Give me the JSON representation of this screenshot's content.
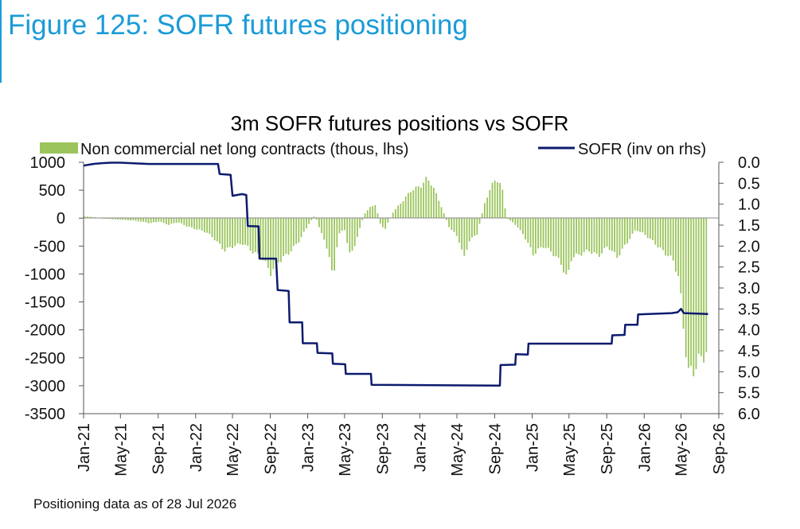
{
  "figure_title": "Figure 125: SOFR futures positioning",
  "footnote": "Positioning data as of 28 Jul 2026",
  "colors": {
    "accent": "#1a9bd7",
    "bars": "#9bc55c",
    "line": "#0c1b6e"
  },
  "chart_data": {
    "type": "bar",
    "title": "3m SOFR futures positions vs SOFR",
    "xlabel": "",
    "ylabel": "",
    "legend_placement": "top",
    "grid": false,
    "x_ticks": [
      "Jan-21",
      "May-21",
      "Sep-21",
      "Jan-22",
      "May-22",
      "Sep-22",
      "Jan-23",
      "May-23",
      "Sep-23",
      "Jan-24",
      "May-24",
      "Sep-24",
      "Jan-25",
      "May-25",
      "Sep-25",
      "Jan-26",
      "May-26",
      "Sep-26"
    ],
    "y_left": {
      "ticks": [
        "1000",
        "500",
        "0",
        "-500",
        "-1000",
        "-1500",
        "-2000",
        "-2500",
        "-3000",
        "-3500"
      ],
      "ylim": [
        -3500,
        1000
      ]
    },
    "y_right": {
      "ticks": [
        "0.0",
        "0.5",
        "1.0",
        "1.5",
        "2.0",
        "2.5",
        "3.0",
        "3.5",
        "4.0",
        "4.5",
        "5.0",
        "5.5",
        "6.0"
      ],
      "ylim": [
        0,
        6
      ],
      "inverted": true
    },
    "series": [
      {
        "name": "Non commercial net long contracts (thous, lhs)",
        "kind": "bar",
        "axis": "left",
        "points": [
          [
            "2021-01-05",
            30
          ],
          [
            "2021-02-05",
            20
          ],
          [
            "2021-03-05",
            -10
          ],
          [
            "2021-04-05",
            -20
          ],
          [
            "2021-05-05",
            -30
          ],
          [
            "2021-06-05",
            -40
          ],
          [
            "2021-07-05",
            -60
          ],
          [
            "2021-08-05",
            -90
          ],
          [
            "2021-09-05",
            -60
          ],
          [
            "2021-10-05",
            -120
          ],
          [
            "2021-11-05",
            -70
          ],
          [
            "2021-12-05",
            -150
          ],
          [
            "2022-01-05",
            -200
          ],
          [
            "2022-02-05",
            -250
          ],
          [
            "2022-03-05",
            -380
          ],
          [
            "2022-04-05",
            -580
          ],
          [
            "2022-05-05",
            -500
          ],
          [
            "2022-06-05",
            -450
          ],
          [
            "2022-07-05",
            -600
          ],
          [
            "2022-08-05",
            -700
          ],
          [
            "2022-09-05",
            -1000
          ],
          [
            "2022-09-20",
            -800
          ],
          [
            "2022-10-05",
            -750
          ],
          [
            "2022-11-05",
            -600
          ],
          [
            "2022-12-05",
            -400
          ],
          [
            "2023-01-05",
            -100
          ],
          [
            "2023-01-25",
            50
          ],
          [
            "2023-02-10",
            -200
          ],
          [
            "2023-03-10",
            -600
          ],
          [
            "2023-03-25",
            -1150
          ],
          [
            "2023-04-10",
            -300
          ],
          [
            "2023-05-01",
            -200
          ],
          [
            "2023-05-20",
            -700
          ],
          [
            "2023-06-05",
            -450
          ],
          [
            "2023-07-05",
            80
          ],
          [
            "2023-07-25",
            200
          ],
          [
            "2023-08-10",
            250
          ],
          [
            "2023-08-25",
            -100
          ],
          [
            "2023-09-10",
            -200
          ],
          [
            "2023-10-05",
            100
          ],
          [
            "2023-11-05",
            300
          ],
          [
            "2023-12-05",
            500
          ],
          [
            "2024-01-05",
            580
          ],
          [
            "2024-01-25",
            720
          ],
          [
            "2024-02-10",
            600
          ],
          [
            "2024-03-05",
            300
          ],
          [
            "2024-04-05",
            -150
          ],
          [
            "2024-05-05",
            -350
          ],
          [
            "2024-05-25",
            -720
          ],
          [
            "2024-06-10",
            -400
          ],
          [
            "2024-07-05",
            -300
          ],
          [
            "2024-08-01",
            300
          ],
          [
            "2024-08-20",
            550
          ],
          [
            "2024-09-05",
            720
          ],
          [
            "2024-09-25",
            550
          ],
          [
            "2024-10-10",
            0
          ],
          [
            "2024-11-05",
            -100
          ],
          [
            "2024-12-05",
            -300
          ],
          [
            "2025-01-05",
            -650
          ],
          [
            "2025-02-05",
            -500
          ],
          [
            "2025-03-05",
            -600
          ],
          [
            "2025-04-05",
            -800
          ],
          [
            "2025-04-25",
            -1100
          ],
          [
            "2025-05-10",
            -700
          ],
          [
            "2025-06-05",
            -650
          ],
          [
            "2025-07-05",
            -580
          ],
          [
            "2025-08-05",
            -680
          ],
          [
            "2025-09-05",
            -500
          ],
          [
            "2025-10-05",
            -700
          ],
          [
            "2025-11-05",
            -450
          ],
          [
            "2025-12-05",
            -200
          ],
          [
            "2026-01-05",
            -300
          ],
          [
            "2026-02-05",
            -450
          ],
          [
            "2026-03-05",
            -600
          ],
          [
            "2026-04-05",
            -750
          ],
          [
            "2026-04-25",
            -1100
          ],
          [
            "2026-05-10",
            -2000
          ],
          [
            "2026-05-25",
            -2800
          ],
          [
            "2026-06-10",
            -2700
          ],
          [
            "2026-06-25",
            -2600
          ],
          [
            "2026-07-10",
            -2450
          ],
          [
            "2026-07-28",
            -2400
          ]
        ]
      },
      {
        "name": "SOFR (inv on rhs)",
        "kind": "line",
        "axis": "right",
        "points": [
          [
            "2021-01-01",
            0.08
          ],
          [
            "2021-02-01",
            0.04
          ],
          [
            "2021-03-01",
            0.02
          ],
          [
            "2021-04-01",
            0.01
          ],
          [
            "2021-05-01",
            0.01
          ],
          [
            "2021-08-01",
            0.04
          ],
          [
            "2022-01-01",
            0.04
          ],
          [
            "2022-03-15",
            0.04
          ],
          [
            "2022-03-20",
            0.28
          ],
          [
            "2022-04-25",
            0.3
          ],
          [
            "2022-05-01",
            0.8
          ],
          [
            "2022-06-01",
            0.76
          ],
          [
            "2022-06-15",
            0.78
          ],
          [
            "2022-06-20",
            1.52
          ],
          [
            "2022-07-25",
            1.53
          ],
          [
            "2022-07-28",
            2.3
          ],
          [
            "2022-09-20",
            2.3
          ],
          [
            "2022-09-25",
            3.05
          ],
          [
            "2022-10-31",
            3.07
          ],
          [
            "2022-11-03",
            3.82
          ],
          [
            "2022-12-14",
            3.82
          ],
          [
            "2022-12-16",
            4.32
          ],
          [
            "2023-01-31",
            4.32
          ],
          [
            "2023-02-02",
            4.55
          ],
          [
            "2023-03-22",
            4.56
          ],
          [
            "2023-03-24",
            4.81
          ],
          [
            "2023-05-03",
            4.82
          ],
          [
            "2023-05-05",
            5.05
          ],
          [
            "2023-07-26",
            5.05
          ],
          [
            "2023-07-28",
            5.31
          ],
          [
            "2024-09-18",
            5.33
          ],
          [
            "2024-09-20",
            4.84
          ],
          [
            "2024-11-07",
            4.83
          ],
          [
            "2024-11-09",
            4.58
          ],
          [
            "2024-12-18",
            4.59
          ],
          [
            "2024-12-20",
            4.33
          ],
          [
            "2025-09-17",
            4.33
          ],
          [
            "2025-09-19",
            4.13
          ],
          [
            "2025-10-29",
            4.12
          ],
          [
            "2025-10-31",
            3.88
          ],
          [
            "2025-12-10",
            3.88
          ],
          [
            "2025-12-12",
            3.63
          ],
          [
            "2026-04-01",
            3.6
          ],
          [
            "2026-04-20",
            3.58
          ],
          [
            "2026-05-01",
            3.5
          ],
          [
            "2026-05-10",
            3.6
          ],
          [
            "2026-07-28",
            3.62
          ]
        ]
      }
    ]
  }
}
